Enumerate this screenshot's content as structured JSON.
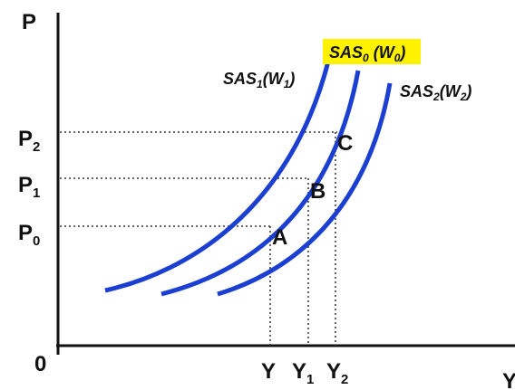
{
  "diagram": {
    "axes": {
      "y_label": "P",
      "x_label": "Y",
      "origin_label": "0"
    },
    "price_ticks": [
      {
        "main": "P",
        "sub": "2"
      },
      {
        "main": "P",
        "sub": "1"
      },
      {
        "main": "P",
        "sub": "0"
      }
    ],
    "output_ticks": [
      {
        "main": "Y",
        "sub": ""
      },
      {
        "main": "Y",
        "sub": "1"
      },
      {
        "main": "Y",
        "sub": "2"
      }
    ],
    "curves": [
      {
        "name": "SAS",
        "sub": "1",
        "wage": "W",
        "wage_sub": "1",
        "highlighted": false
      },
      {
        "name": "SAS",
        "sub": "0",
        "wage": "W",
        "wage_sub": "0",
        "highlighted": true
      },
      {
        "name": "SAS",
        "sub": "2",
        "wage": "W",
        "wage_sub": "2",
        "highlighted": false
      }
    ],
    "points": [
      "A",
      "B",
      "C"
    ],
    "colors": {
      "curve": "#1b3fd1",
      "highlight": "#fff200",
      "axis": "#111111",
      "guide": "#333333"
    }
  }
}
